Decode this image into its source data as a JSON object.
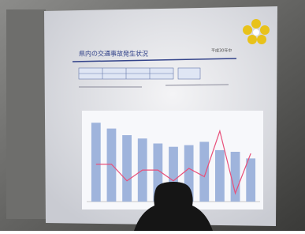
{
  "slide": {
    "title": "県内の交通事故発生状況",
    "date": "平成30年中"
  },
  "chart_data": {
    "type": "bar",
    "categories": [
      null,
      null,
      null,
      null,
      null,
      null,
      null,
      null,
      null,
      null,
      null
    ],
    "series": [
      {
        "color": "#9fb4dc",
        "values": [
          95,
          88,
          80,
          76,
          70,
          66,
          68,
          72,
          62,
          60,
          52
        ]
      },
      {
        "color": "#e8507a",
        "axis": "y2",
        "values": [
          45,
          45,
          25,
          38,
          38,
          25,
          40,
          30,
          85,
          10,
          58
        ]
      }
    ],
    "ylim": [
      0,
      100
    ],
    "y2lim": [
      0,
      100
    ]
  }
}
